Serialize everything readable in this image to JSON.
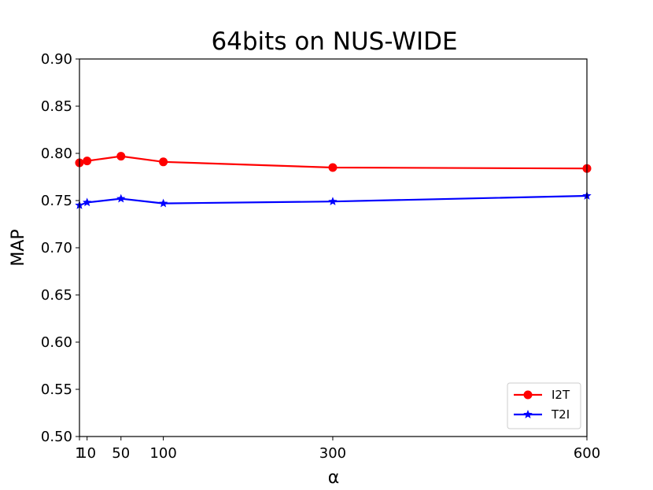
{
  "chart_data": {
    "type": "line",
    "title": "64bits on NUS-WIDE",
    "xlabel": "α",
    "ylabel": "MAP",
    "x": [
      1,
      10,
      50,
      100,
      300,
      600
    ],
    "xticks": [
      1,
      10,
      50,
      100,
      300,
      600
    ],
    "xlim": [
      1,
      600
    ],
    "ylim": [
      0.5,
      0.9
    ],
    "yticks": [
      "0.50",
      "0.55",
      "0.60",
      "0.65",
      "0.70",
      "0.75",
      "0.80",
      "0.85",
      "0.90"
    ],
    "grid": false,
    "legend_position": "lower-right",
    "series": [
      {
        "name": "I2T",
        "color": "#ff0000",
        "marker": "circle",
        "values": [
          0.79,
          0.792,
          0.797,
          0.791,
          0.785,
          0.784
        ]
      },
      {
        "name": "T2I",
        "color": "#0000ff",
        "marker": "star",
        "values": [
          0.745,
          0.748,
          0.752,
          0.747,
          0.749,
          0.755
        ]
      }
    ]
  }
}
